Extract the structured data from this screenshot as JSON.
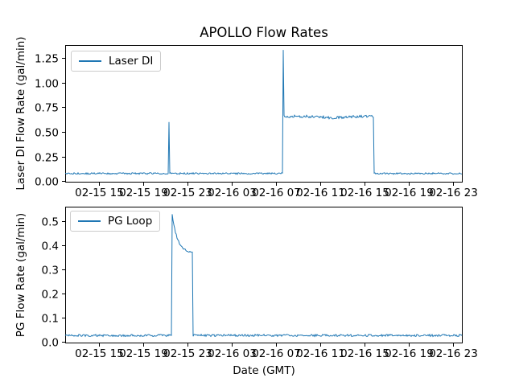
{
  "figure": {
    "title": "APOLLO Flow Rates",
    "xlabel": "Date (GMT)",
    "background_color": "#ffffff",
    "axes_frame_color": "#000000",
    "x_axis": {
      "note": "time axis shared by both subplots; hours counted from 02-15 00:00 GMT",
      "xlim_hours": [
        11.95,
        47.87
      ],
      "tick_hours": [
        15,
        19,
        23,
        27,
        31,
        35,
        39,
        43,
        47
      ],
      "tick_labels": [
        "02-15 15",
        "02-15 19",
        "02-15 23",
        "02-16 03",
        "02-16 07",
        "02-16 11",
        "02-16 15",
        "02-16 19",
        "02-16 23"
      ]
    }
  },
  "chart_data": [
    {
      "type": "line",
      "title": "APOLLO Flow Rates",
      "ylabel": "Laser DI Flow Rate (gal/min)",
      "legend": {
        "label": "Laser DI",
        "position": "upper left"
      },
      "color": "#1f77b4",
      "grid": false,
      "ylim": [
        -0.013,
        1.38
      ],
      "ytick_values": [
        0.0,
        0.25,
        0.5,
        0.75,
        1.0,
        1.25
      ],
      "ytick_labels": [
        "0.00",
        "0.25",
        "0.50",
        "0.75",
        "1.00",
        "1.25"
      ],
      "events": [
        "baseline ~0.08 gal/min from 02-15 12:00 to 02-16 07:40",
        "narrow spike to ~0.60 gal/min at 02-15 21:20",
        "startup spike to ~1.33 gal/min at 02-16 07:40",
        "noisy plateau ~0.66 gal/min (slight dip to ~0.64 near 02-16 12:15) until 02-16 15:50",
        "returns to baseline ~0.08 gal/min until 02-16 23:50"
      ],
      "segments": [
        {
          "t0": 11.95,
          "t1": 31.63,
          "level": 0.079,
          "noise": 0.008
        },
        {
          "t0": 31.63,
          "t1": 31.7,
          "level": 1.33,
          "noise": 0
        },
        {
          "t0": 31.7,
          "t1": 39.84,
          "level": 0.657,
          "noise": 0.013,
          "dip": {
            "center": 36.2,
            "width": 1.4,
            "depth": 0.013
          }
        },
        {
          "t0": 39.84,
          "t1": 47.87,
          "level": 0.079,
          "noise": 0.008
        }
      ],
      "spikes": [
        {
          "t": 21.33,
          "v": 0.6
        }
      ]
    },
    {
      "type": "line",
      "ylabel": "PG Flow Rate (gal/min)",
      "legend": {
        "label": "PG Loop",
        "position": "upper left"
      },
      "color": "#1f77b4",
      "grid": false,
      "ylim": [
        -0.007,
        0.561
      ],
      "ytick_values": [
        0.0,
        0.1,
        0.2,
        0.3,
        0.4,
        0.5
      ],
      "ytick_labels": [
        "0.0",
        "0.1",
        "0.2",
        "0.3",
        "0.4",
        "0.5"
      ],
      "events": [
        "baseline ~0.025 gal/min from 02-15 12:00 to 02-15 21:35",
        "jump to ~0.53 gal/min at 02-15 21:35, exponential decay to ~0.37 shelf",
        "drops back to baseline ~0.025 gal/min at 02-15 23:25 through 02-16 23:50"
      ],
      "segments": [
        {
          "t0": 11.95,
          "t1": 21.62,
          "level": 0.026,
          "noise": 0.0045
        },
        {
          "t0": 21.62,
          "t1": 23.44,
          "decay": {
            "from": 0.53,
            "to": 0.368,
            "tau": 0.48
          },
          "noise": 0.004
        },
        {
          "t0": 23.44,
          "t1": 47.87,
          "level": 0.026,
          "noise": 0.0045
        }
      ],
      "spikes": []
    }
  ]
}
